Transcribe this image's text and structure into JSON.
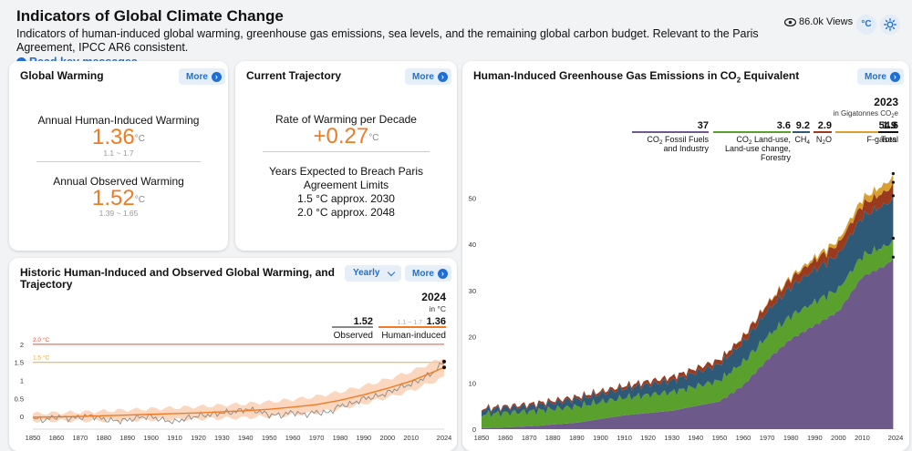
{
  "header": {
    "title": "Indicators of Global Climate Change",
    "description": "Indicators of human-induced global warming, greenhouse gas emissions, sea levels, and the remaining global carbon budget. Relevant to the Paris Agreement, IPCC AR6 consistent.",
    "read_more": "Read key messages",
    "views": "86.0k Views",
    "unit_toggle": "°C"
  },
  "more_label": "More",
  "global_warming": {
    "title": "Global Warming",
    "human_label": "Annual Human-Induced Warming",
    "human_value": "1.36",
    "human_unit": "°C",
    "human_range": "1.1 ~ 1.7",
    "observed_label": "Annual Observed Warming",
    "observed_value": "1.52",
    "observed_unit": "°C",
    "observed_range": "1.39 ~ 1.65"
  },
  "trajectory": {
    "title": "Current Trajectory",
    "rate_label": "Rate of Warming per Decade",
    "rate_value": "+0.27",
    "rate_unit": "°C",
    "breach_label": "Years Expected to Breach Paris Agreement Limits",
    "breach_15": "1.5 °C approx. 2030",
    "breach_20": "2.0 °C approx. 2048"
  },
  "historic": {
    "title": "Historic Human-Induced and Observed Global Warming, and Trajectory",
    "select_value": "Yearly",
    "year": "2024",
    "unit": "in °C",
    "observed_value": "1.52",
    "observed_name": "Observed",
    "human_range": "1.1 ~ 1.7",
    "human_value": "1.36",
    "human_name": "Human-induced",
    "line_20": "2.0 °C",
    "line_15": "1.5 °C"
  },
  "emissions": {
    "title_pre": "Human-Induced Greenhouse Gas Emissions in CO",
    "title_sub": "2",
    "title_post": " Equivalent",
    "year": "2023",
    "unit_pre": "in Gigatonnes CO",
    "unit_sub": "2",
    "unit_post": "e",
    "legend": [
      {
        "value": "37",
        "line1_pre": "CO",
        "line1_sub": "2",
        "line1_post": " Fossil Fuels",
        "line2": "and Industry",
        "color": "#6e5a8a"
      },
      {
        "value": "3.6",
        "line1_pre": "CO",
        "line1_sub": "2",
        "line1_post": " Land-use,",
        "line2": "Land-use change,",
        "line3": "Forestry",
        "color": "#5aa02c"
      },
      {
        "value": "9.2",
        "line1_pre": "CH",
        "line1_sub": "4",
        "line1_post": "",
        "color": "#2e5a78"
      },
      {
        "value": "2.9",
        "line1_pre": "N",
        "line1_sub": "2",
        "line1_post": "O",
        "color": "#9a3b1f"
      },
      {
        "value": "1.9",
        "line1_pre": "F-gases",
        "line1_sub": "",
        "line1_post": "",
        "color": "#d9a030"
      },
      {
        "value": "54.6",
        "line1_pre": "Total",
        "line1_sub": "",
        "line1_post": "",
        "color": "#111111"
      }
    ]
  },
  "chart_data": [
    {
      "type": "line",
      "title": "Historic Human-Induced and Observed Global Warming, and Trajectory",
      "x_ticks": [
        1850,
        1860,
        1870,
        1880,
        1890,
        1900,
        1910,
        1920,
        1930,
        1940,
        1950,
        1960,
        1970,
        1980,
        1990,
        2000,
        2010,
        2024
      ],
      "y_ticks": [
        0,
        0.5,
        1,
        1.5,
        2
      ],
      "xlim": [
        1850,
        2024
      ],
      "ylim": [
        -0.3,
        2.2
      ],
      "reference_lines": [
        {
          "label": "2.0 °C",
          "y": 2.0,
          "color": "#e0523a"
        },
        {
          "label": "1.5 °C",
          "y": 1.5,
          "color": "#f0a830"
        }
      ],
      "series": [
        {
          "name": "Observed",
          "color": "#8a8a8a",
          "x": [
            1850,
            1855,
            1860,
            1865,
            1870,
            1875,
            1880,
            1885,
            1890,
            1895,
            1900,
            1905,
            1910,
            1915,
            1920,
            1925,
            1930,
            1935,
            1940,
            1945,
            1950,
            1955,
            1960,
            1965,
            1970,
            1975,
            1980,
            1985,
            1990,
            1995,
            2000,
            2005,
            2010,
            2015,
            2020,
            2024
          ],
          "y": [
            -0.05,
            -0.1,
            0.0,
            -0.05,
            -0.02,
            0.02,
            -0.08,
            -0.12,
            -0.1,
            -0.02,
            0.0,
            -0.1,
            -0.15,
            -0.05,
            0.02,
            0.05,
            0.1,
            0.12,
            0.2,
            0.15,
            0.05,
            0.03,
            0.12,
            0.05,
            0.12,
            0.1,
            0.3,
            0.35,
            0.5,
            0.55,
            0.65,
            0.8,
            0.9,
            1.05,
            1.25,
            1.52
          ]
        },
        {
          "name": "Human-induced",
          "color": "#f07b24",
          "x": [
            1850,
            1860,
            1870,
            1880,
            1890,
            1900,
            1910,
            1920,
            1930,
            1940,
            1950,
            1960,
            1970,
            1980,
            1990,
            2000,
            2010,
            2020,
            2024
          ],
          "y": [
            -0.02,
            -0.01,
            0.0,
            0.02,
            0.04,
            0.06,
            0.08,
            0.1,
            0.13,
            0.16,
            0.2,
            0.26,
            0.33,
            0.45,
            0.6,
            0.78,
            0.98,
            1.25,
            1.36
          ]
        }
      ]
    },
    {
      "type": "area",
      "title": "Human-Induced Greenhouse Gas Emissions in CO2 Equivalent",
      "x_ticks": [
        1850,
        1860,
        1870,
        1880,
        1890,
        1900,
        1910,
        1920,
        1930,
        1940,
        1950,
        1960,
        1970,
        1980,
        1990,
        2000,
        2010,
        2024
      ],
      "y_ticks": [
        0,
        10,
        20,
        30,
        40,
        50
      ],
      "xlim": [
        1850,
        2024
      ],
      "ylim": [
        0,
        56
      ],
      "x": [
        1850,
        1870,
        1890,
        1910,
        1930,
        1950,
        1960,
        1970,
        1980,
        1990,
        2000,
        2010,
        2020,
        2023
      ],
      "series": [
        {
          "name": "CO2 Fossil Fuels and Industry",
          "color": "#6e5a8a",
          "values": [
            0.2,
            0.6,
            1.4,
            3.0,
            4.0,
            6.0,
            9.5,
            15.0,
            19.5,
            22.5,
            25.5,
            33.0,
            35.5,
            37.0
          ]
        },
        {
          "name": "CO2 Land-use, Land-use change, Forestry",
          "color": "#5aa02c",
          "values": [
            3.0,
            3.2,
            3.5,
            3.8,
            4.0,
            4.5,
            5.0,
            5.0,
            5.0,
            5.0,
            4.8,
            4.5,
            4.2,
            3.6
          ]
        },
        {
          "name": "CH4",
          "color": "#2e5a78",
          "values": [
            1.0,
            1.2,
            1.6,
            2.0,
            2.5,
            3.5,
            4.3,
            5.5,
            6.3,
            7.0,
            7.5,
            8.5,
            9.0,
            9.2
          ]
        },
        {
          "name": "N2O",
          "color": "#9a3b1f",
          "values": [
            0.3,
            0.4,
            0.5,
            0.6,
            0.8,
            1.0,
            1.2,
            1.5,
            1.8,
            2.1,
            2.3,
            2.6,
            2.8,
            2.9
          ]
        },
        {
          "name": "F-gases",
          "color": "#d9a030",
          "values": [
            0.0,
            0.0,
            0.0,
            0.0,
            0.0,
            0.0,
            0.1,
            0.2,
            0.4,
            0.6,
            0.8,
            1.3,
            1.7,
            1.9
          ]
        }
      ]
    }
  ]
}
